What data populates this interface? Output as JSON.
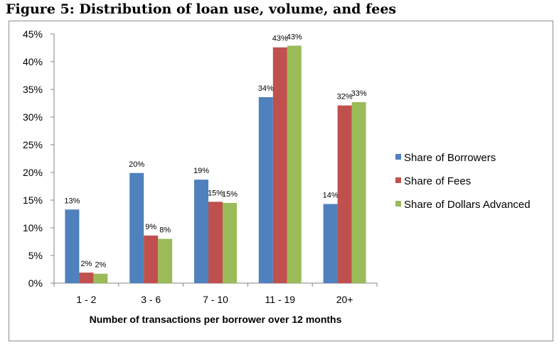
{
  "figure": {
    "title": "Figure 5: Distribution of loan use, volume, and fees"
  },
  "chart_data": {
    "type": "bar",
    "categories": [
      "1 - 2",
      "3 - 6",
      "7 - 10",
      "11 - 19",
      "20+"
    ],
    "series": [
      {
        "name": "Share of Borrowers",
        "color": "#4f81bd",
        "values": [
          13.3,
          19.9,
          18.7,
          33.6,
          14.3
        ],
        "labels": [
          "13%",
          "20%",
          "19%",
          "34%",
          "14%"
        ]
      },
      {
        "name": "Share of Fees",
        "color": "#c0504d",
        "values": [
          1.9,
          8.6,
          14.7,
          42.6,
          32.1
        ],
        "labels": [
          "2%",
          "9%",
          "15%",
          "43%",
          "32%"
        ]
      },
      {
        "name": "Share of Dollars Advanced",
        "color": "#9bbb59",
        "values": [
          1.7,
          8.0,
          14.5,
          42.9,
          32.7
        ],
        "labels": [
          "2%",
          "8%",
          "15%",
          "43%",
          "33%"
        ]
      }
    ],
    "yticks": [
      0,
      5,
      10,
      15,
      20,
      25,
      30,
      35,
      40,
      45
    ],
    "ytick_labels": [
      "0%",
      "5%",
      "10%",
      "15%",
      "20%",
      "25%",
      "30%",
      "35%",
      "40%",
      "45%"
    ],
    "ylim": [
      0,
      45
    ],
    "xlabel": "Number of transactions per borrower over 12 months",
    "ylabel": "",
    "grid": false,
    "legend_position": "right"
  }
}
